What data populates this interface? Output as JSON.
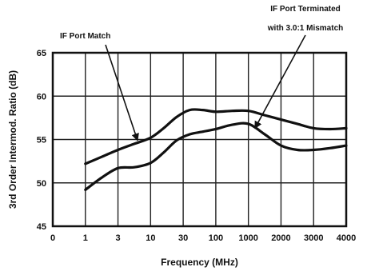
{
  "chart_data": {
    "type": "line",
    "title": "",
    "xlabel": "Frequency (MHz)",
    "ylabel": "3rd Order Intermod. Ratio (dB)",
    "x_categories": [
      "0",
      "1",
      "3",
      "10",
      "30",
      "100",
      "1000",
      "2000",
      "3000",
      "4000"
    ],
    "ylim": [
      45,
      65
    ],
    "yticks": [
      "45",
      "50",
      "55",
      "60",
      "65"
    ],
    "grid": true,
    "series": [
      {
        "values": [
          [
            1,
            52.2
          ],
          [
            1.5,
            53.0
          ],
          [
            2,
            53.8
          ],
          [
            2.5,
            54.5
          ],
          [
            3,
            55.2
          ],
          [
            3.4,
            56.3
          ],
          [
            3.8,
            57.6
          ],
          [
            4.2,
            58.4
          ],
          [
            4.6,
            58.4
          ],
          [
            5,
            58.2
          ],
          [
            5.5,
            58.3
          ],
          [
            6,
            58.3
          ],
          [
            6.5,
            57.8
          ],
          [
            7,
            57.3
          ],
          [
            7.5,
            56.8
          ],
          [
            8,
            56.3
          ],
          [
            8.5,
            56.2
          ],
          [
            9,
            56.3
          ]
        ]
      },
      {
        "values": [
          [
            1,
            49.2
          ],
          [
            1.5,
            50.6
          ],
          [
            2,
            51.7
          ],
          [
            2.5,
            51.8
          ],
          [
            3,
            52.3
          ],
          [
            3.4,
            53.5
          ],
          [
            3.8,
            54.9
          ],
          [
            4.2,
            55.6
          ],
          [
            4.6,
            55.9
          ],
          [
            5,
            56.2
          ],
          [
            5.5,
            56.7
          ],
          [
            6,
            56.8
          ],
          [
            6.5,
            55.6
          ],
          [
            7,
            54.3
          ],
          [
            7.5,
            53.8
          ],
          [
            8,
            53.8
          ],
          [
            8.5,
            54.0
          ],
          [
            9,
            54.3
          ]
        ]
      }
    ],
    "annotations": [
      {
        "line1": "IF Port Match",
        "line2": "",
        "target": [
          2.6,
          54.7
        ]
      },
      {
        "line1": "IF Port Terminated",
        "line2": "with 3.0:1 Mismatch",
        "target": [
          6.2,
          56.1
        ]
      }
    ]
  }
}
